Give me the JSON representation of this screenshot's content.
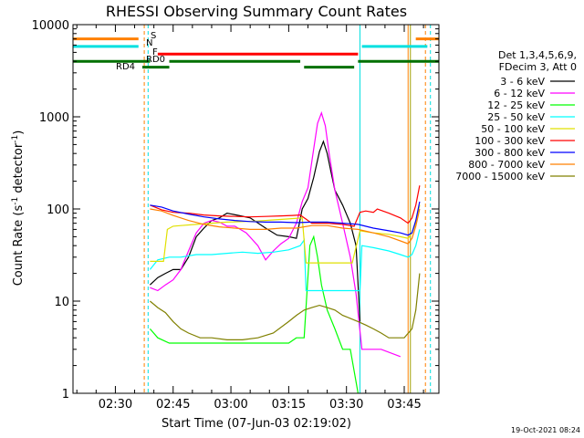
{
  "chart_data": {
    "type": "line",
    "title": "RHESSI Observing Summary Count Rates",
    "xlabel": "Start Time (07-Jun-03 02:19:02)",
    "ylabel_main": "Count Rate (s",
    "ylabel_sup1": "-1",
    "ylabel_mid": " detector",
    "ylabel_sup2": "-1",
    "ylabel_end": ")",
    "y_scale": "log",
    "ylim": [
      1,
      10000
    ],
    "xlim_minutes": [
      0,
      95
    ],
    "x_tick_minutes": [
      11,
      26,
      41,
      56,
      71,
      86
    ],
    "x_tick_labels": [
      "02:30",
      "02:45",
      "03:00",
      "03:15",
      "03:30",
      "03:45"
    ],
    "y_ticks": [
      1,
      10,
      100,
      1000,
      10000
    ],
    "y_tick_labels": [
      "1",
      "10",
      "100",
      "1000",
      "10000"
    ],
    "legend_header": [
      "Det 1,3,4,5,6,9,",
      "FDecim 3, Att 0"
    ],
    "legend_placement": "right",
    "timestamp": "19-Oct-2021 08:24",
    "vlines": [
      {
        "t": 0,
        "color": "#00e0e0",
        "dashed": false
      },
      {
        "t": 18.5,
        "color": "#ff8000",
        "dashed": true
      },
      {
        "t": 19.5,
        "color": "#00e0e0",
        "dashed": true
      },
      {
        "t": 74.5,
        "color": "#00e0e0",
        "dashed": false
      },
      {
        "t": 87,
        "color": "#ff8000",
        "dashed": false
      },
      {
        "t": 87.6,
        "color": "#a0a000",
        "dashed": false
      },
      {
        "t": 91.5,
        "color": "#ff8000",
        "dashed": true
      },
      {
        "t": 92.8,
        "color": "#00e0e0",
        "dashed": true
      }
    ],
    "flags": [
      {
        "label": "S",
        "color": "#ff8000",
        "y": 7000,
        "segments": [
          [
            0,
            17
          ],
          [
            89,
            95
          ]
        ]
      },
      {
        "label": "N",
        "color": "#00e0e0",
        "y": 5800,
        "segments": [
          [
            0,
            17
          ],
          [
            75,
            92
          ]
        ]
      },
      {
        "label": "F",
        "color": "#ff0000",
        "y": 4800,
        "segments": [
          [
            22,
            74
          ]
        ]
      },
      {
        "label": "RD0",
        "color": "#007000",
        "y": 4000,
        "segments": [
          [
            0,
            20
          ],
          [
            25,
            59
          ],
          [
            74,
            95
          ]
        ]
      },
      {
        "label": "RD4",
        "color": "#007000",
        "y": 3450,
        "segments": [
          [
            18,
            25
          ],
          [
            60,
            73
          ]
        ]
      }
    ],
    "series": [
      {
        "name": "3 - 6 keV",
        "color": "#000000",
        "points": [
          [
            20,
            15
          ],
          [
            22,
            18
          ],
          [
            24,
            20
          ],
          [
            26,
            22
          ],
          [
            28,
            22
          ],
          [
            30,
            30
          ],
          [
            32,
            50
          ],
          [
            34,
            62
          ],
          [
            36,
            75
          ],
          [
            38,
            80
          ],
          [
            40,
            90
          ],
          [
            43,
            85
          ],
          [
            46,
            80
          ],
          [
            50,
            62
          ],
          [
            53,
            52
          ],
          [
            56,
            50
          ],
          [
            58,
            48
          ],
          [
            59.5,
            100
          ],
          [
            61,
            130
          ],
          [
            62.5,
            220
          ],
          [
            64,
            420
          ],
          [
            65,
            540
          ],
          [
            66,
            400
          ],
          [
            67,
            250
          ],
          [
            68,
            160
          ],
          [
            70,
            110
          ],
          [
            72,
            70
          ],
          [
            73.5,
            40
          ],
          [
            74.5,
            6
          ]
        ]
      },
      {
        "name": "6 - 12 keV",
        "color": "#ff00ff",
        "points": [
          [
            20,
            14
          ],
          [
            22,
            13
          ],
          [
            24,
            15
          ],
          [
            26,
            17
          ],
          [
            28,
            22
          ],
          [
            30,
            35
          ],
          [
            32,
            55
          ],
          [
            34,
            70
          ],
          [
            36,
            75
          ],
          [
            38,
            72
          ],
          [
            40,
            65
          ],
          [
            42,
            65
          ],
          [
            45,
            55
          ],
          [
            48,
            40
          ],
          [
            50,
            28
          ],
          [
            52,
            35
          ],
          [
            54,
            42
          ],
          [
            56,
            48
          ],
          [
            58,
            70
          ],
          [
            59.5,
            120
          ],
          [
            61,
            170
          ],
          [
            62.5,
            450
          ],
          [
            63.5,
            850
          ],
          [
            64.5,
            1100
          ],
          [
            65.5,
            800
          ],
          [
            66.5,
            400
          ],
          [
            68,
            160
          ],
          [
            70,
            70
          ],
          [
            72,
            30
          ],
          [
            73.5,
            12
          ],
          [
            75,
            3
          ],
          [
            80,
            3
          ],
          [
            85,
            2.5
          ]
        ]
      },
      {
        "name": "12 - 25 keV",
        "color": "#00ff00",
        "points": [
          [
            20,
            5
          ],
          [
            22,
            4
          ],
          [
            25,
            3.5
          ],
          [
            28,
            3.5
          ],
          [
            32,
            3.5
          ],
          [
            36,
            3.5
          ],
          [
            40,
            3.5
          ],
          [
            44,
            3.5
          ],
          [
            48,
            3.5
          ],
          [
            52,
            3.5
          ],
          [
            56,
            3.5
          ],
          [
            58,
            4
          ],
          [
            60,
            4
          ],
          [
            61.5,
            40
          ],
          [
            62.5,
            50
          ],
          [
            63.5,
            30
          ],
          [
            64.5,
            15
          ],
          [
            66,
            8
          ],
          [
            68,
            5
          ],
          [
            70,
            3
          ],
          [
            72,
            3
          ],
          [
            74,
            1
          ]
        ]
      },
      {
        "name": "25 - 50 keV",
        "color": "#00ffff",
        "points": [
          [
            20,
            22
          ],
          [
            22,
            28
          ],
          [
            25,
            30
          ],
          [
            28,
            30
          ],
          [
            32,
            32
          ],
          [
            36,
            32
          ],
          [
            40,
            33
          ],
          [
            44,
            34
          ],
          [
            48,
            33
          ],
          [
            52,
            34
          ],
          [
            56,
            36
          ],
          [
            59,
            40
          ],
          [
            60,
            46
          ],
          [
            60.5,
            13
          ],
          [
            64,
            13
          ],
          [
            68,
            13
          ],
          [
            72,
            13
          ],
          [
            74.5,
            13
          ],
          [
            75,
            40
          ],
          [
            78,
            38
          ],
          [
            82,
            35
          ],
          [
            85,
            32
          ],
          [
            87,
            30
          ],
          [
            88,
            32
          ],
          [
            89,
            40
          ],
          [
            90,
            60
          ]
        ]
      },
      {
        "name": "50 - 100 keV",
        "color": "#e0e000",
        "points": [
          [
            20,
            27
          ],
          [
            22,
            27
          ],
          [
            23.5,
            27
          ],
          [
            24.5,
            60
          ],
          [
            26,
            65
          ],
          [
            28,
            66
          ],
          [
            32,
            68
          ],
          [
            36,
            70
          ],
          [
            40,
            72
          ],
          [
            44,
            73
          ],
          [
            48,
            74
          ],
          [
            52,
            76
          ],
          [
            56,
            78
          ],
          [
            59.5,
            80
          ],
          [
            60.5,
            26
          ],
          [
            62,
            26
          ],
          [
            66,
            26
          ],
          [
            70,
            26
          ],
          [
            72.5,
            26
          ],
          [
            74.5,
            58
          ],
          [
            78,
            55
          ],
          [
            82,
            53
          ],
          [
            85,
            50
          ],
          [
            87,
            48
          ],
          [
            88,
            55
          ],
          [
            89,
            70
          ],
          [
            90,
            110
          ]
        ]
      },
      {
        "name": "100 - 300 keV",
        "color": "#ff0000",
        "points": [
          [
            20,
            110
          ],
          [
            23,
            98
          ],
          [
            26,
            92
          ],
          [
            30,
            90
          ],
          [
            34,
            86
          ],
          [
            38,
            84
          ],
          [
            42,
            83
          ],
          [
            46,
            82
          ],
          [
            50,
            83
          ],
          [
            54,
            84
          ],
          [
            57,
            85
          ],
          [
            59,
            86
          ],
          [
            62,
            70
          ],
          [
            66,
            70
          ],
          [
            70,
            68
          ],
          [
            73,
            65
          ],
          [
            74.5,
            92
          ],
          [
            76,
            95
          ],
          [
            78,
            92
          ],
          [
            79,
            100
          ],
          [
            82,
            90
          ],
          [
            85,
            80
          ],
          [
            87,
            70
          ],
          [
            88,
            80
          ],
          [
            89,
            110
          ],
          [
            90,
            180
          ]
        ]
      },
      {
        "name": "300 - 800 keV",
        "color": "#0000ff",
        "points": [
          [
            20,
            110
          ],
          [
            23,
            105
          ],
          [
            26,
            95
          ],
          [
            30,
            88
          ],
          [
            34,
            82
          ],
          [
            38,
            78
          ],
          [
            42,
            75
          ],
          [
            46,
            73
          ],
          [
            50,
            72
          ],
          [
            54,
            72
          ],
          [
            58,
            71
          ],
          [
            62,
            72
          ],
          [
            66,
            72
          ],
          [
            70,
            70
          ],
          [
            74,
            68
          ],
          [
            78,
            62
          ],
          [
            82,
            58
          ],
          [
            85,
            55
          ],
          [
            87,
            52
          ],
          [
            88,
            55
          ],
          [
            89,
            75
          ],
          [
            90,
            120
          ]
        ]
      },
      {
        "name": "800 - 7000 keV",
        "color": "#ff8000",
        "points": [
          [
            20,
            100
          ],
          [
            23,
            95
          ],
          [
            26,
            85
          ],
          [
            30,
            75
          ],
          [
            34,
            68
          ],
          [
            38,
            64
          ],
          [
            42,
            62
          ],
          [
            46,
            60
          ],
          [
            50,
            60
          ],
          [
            54,
            62
          ],
          [
            58,
            62
          ],
          [
            62,
            66
          ],
          [
            66,
            66
          ],
          [
            70,
            62
          ],
          [
            74,
            60
          ],
          [
            78,
            55
          ],
          [
            82,
            50
          ],
          [
            85,
            45
          ],
          [
            87,
            42
          ],
          [
            88,
            48
          ],
          [
            89,
            65
          ],
          [
            90,
            100
          ]
        ]
      },
      {
        "name": "7000 - 15000 keV",
        "color": "#808000",
        "points": [
          [
            20,
            10
          ],
          [
            22,
            8.5
          ],
          [
            24,
            7.5
          ],
          [
            26,
            6
          ],
          [
            28,
            5
          ],
          [
            30,
            4.5
          ],
          [
            33,
            4
          ],
          [
            36,
            4
          ],
          [
            40,
            3.8
          ],
          [
            44,
            3.8
          ],
          [
            48,
            4
          ],
          [
            52,
            4.5
          ],
          [
            56,
            6
          ],
          [
            58,
            7
          ],
          [
            60,
            8
          ],
          [
            62,
            8.5
          ],
          [
            64,
            9
          ],
          [
            66,
            8.5
          ],
          [
            68,
            8
          ],
          [
            70,
            7
          ],
          [
            72,
            6.5
          ],
          [
            74,
            6
          ],
          [
            76,
            5.5
          ],
          [
            78,
            5
          ],
          [
            80,
            4.5
          ],
          [
            82,
            4
          ],
          [
            84,
            4
          ],
          [
            86,
            4
          ],
          [
            88,
            5
          ],
          [
            89,
            8
          ],
          [
            90,
            20
          ]
        ]
      }
    ]
  }
}
